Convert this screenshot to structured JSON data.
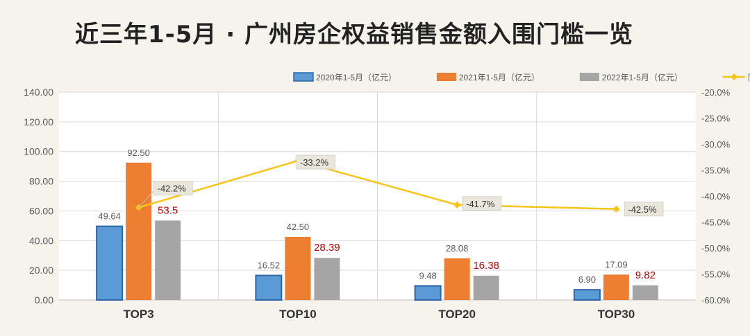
{
  "title": "近三年1-5月 · 广州房企权益销售金额入围门槛一览",
  "colors": {
    "s2020": "#5b9bd5",
    "s2020_border": "#2e64a8",
    "s2021": "#ed7d31",
    "s2022": "#a5a5a5",
    "line": "#f5c518",
    "highlight_label": "#c00000",
    "label": "#595959"
  },
  "chart_data": {
    "type": "bar",
    "categories": [
      "TOP3",
      "TOP10",
      "TOP20",
      "TOP30"
    ],
    "series": [
      {
        "name": "2020年1-5月（亿元）",
        "values": [
          49.64,
          16.52,
          9.48,
          6.9
        ],
        "labels": [
          "49.64",
          "16.52",
          "9.48",
          "6.90"
        ]
      },
      {
        "name": "2021年1-5月（亿元）",
        "values": [
          92.5,
          42.5,
          28.08,
          17.09
        ],
        "labels": [
          "92.50",
          "42.50",
          "28.08",
          "17.09"
        ]
      },
      {
        "name": "2022年1-5月（亿元）",
        "values": [
          53.5,
          28.39,
          16.38,
          9.82
        ],
        "labels": [
          "53.5",
          "28.39",
          "16.38",
          "9.82"
        ]
      }
    ],
    "line_series": {
      "name": "同比",
      "values": [
        -42.2,
        -33.2,
        -41.7,
        -42.5
      ],
      "labels": [
        "-42.2%",
        "-33.2%",
        "-41.7%",
        "-42.5%"
      ]
    },
    "ylim": [
      0,
      140
    ],
    "yticks": [
      "0.00",
      "20.00",
      "40.00",
      "60.00",
      "80.00",
      "100.00",
      "120.00",
      "140.00"
    ],
    "y2lim": [
      -60,
      -20
    ],
    "y2ticks": [
      "-20.0%",
      "-25.0%",
      "-30.0%",
      "-35.0%",
      "-40.0%",
      "-45.0%",
      "-50.0%",
      "-55.0%",
      "-60.0%"
    ],
    "legend_position": "top-right",
    "grid": true
  }
}
